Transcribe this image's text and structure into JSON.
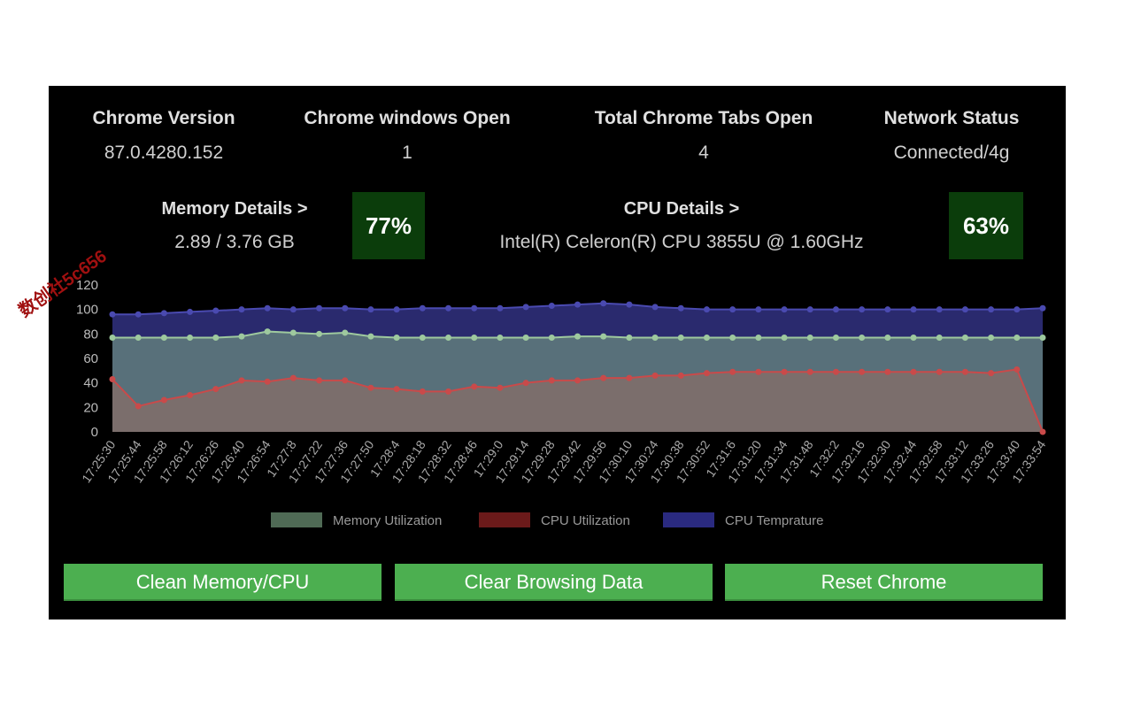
{
  "stats": {
    "chrome_version": {
      "label": "Chrome Version",
      "value": "87.0.4280.152"
    },
    "windows_open": {
      "label": "Chrome windows Open",
      "value": "1"
    },
    "tabs_open": {
      "label": "Total Chrome Tabs Open",
      "value": "4"
    },
    "network": {
      "label": "Network Status",
      "value": "Connected/4g"
    }
  },
  "memory": {
    "label": "Memory Details >",
    "value": "2.89 / 3.76 GB",
    "percent": "77%"
  },
  "cpu": {
    "label": "CPU Details >",
    "value": "Intel(R) Celeron(R) CPU 3855U @ 1.60GHz",
    "percent": "63%"
  },
  "watermark": "数创社5c656",
  "buttons": {
    "clean": "Clean Memory/CPU",
    "clear": "Clear Browsing Data",
    "reset": "Reset Chrome"
  },
  "colors": {
    "memory_fill": "#58707a",
    "memory_line": "#9ec99e",
    "cpu_fill": "#7b6e6c",
    "cpu_line": "#c94a4a",
    "temp_fill": "#2a2a6e",
    "temp_line": "#4a4ab0",
    "button": "#4caf50",
    "percent_box": "#0b3d0b"
  },
  "chart_data": {
    "type": "area",
    "ylim": [
      0,
      120
    ],
    "yticks": [
      "0",
      "20",
      "40",
      "60",
      "80",
      "100",
      "120"
    ],
    "x": [
      "17:25:30",
      "17:25:44",
      "17:25:58",
      "17:26:12",
      "17:26:26",
      "17:26:40",
      "17:26:54",
      "17:27:8",
      "17:27:22",
      "17:27:36",
      "17:27:50",
      "17:28:4",
      "17:28:18",
      "17:28:32",
      "17:28:46",
      "17:29:0",
      "17:29:14",
      "17:29:28",
      "17:29:42",
      "17:29:56",
      "17:30:10",
      "17:30:24",
      "17:30:38",
      "17:30:52",
      "17:31:6",
      "17:31:20",
      "17:31:34",
      "17:31:48",
      "17:32:2",
      "17:32:16",
      "17:32:30",
      "17:32:44",
      "17:32:58",
      "17:33:12",
      "17:33:26",
      "17:33:40",
      "17:33:54"
    ],
    "legend": [
      "Memory Utilization",
      "CPU Utilization",
      "CPU Temprature"
    ],
    "series": [
      {
        "name": "CPU Temprature",
        "values": [
          96,
          96,
          97,
          98,
          99,
          100,
          101,
          100,
          101,
          101,
          100,
          100,
          101,
          101,
          101,
          101,
          102,
          103,
          104,
          105,
          104,
          102,
          101,
          100,
          100,
          100,
          100,
          100,
          100,
          100,
          100,
          100,
          100,
          100,
          100,
          100,
          101
        ]
      },
      {
        "name": "Memory Utilization",
        "values": [
          77,
          77,
          77,
          77,
          77,
          78,
          82,
          81,
          80,
          81,
          78,
          77,
          77,
          77,
          77,
          77,
          77,
          77,
          78,
          78,
          77,
          77,
          77,
          77,
          77,
          77,
          77,
          77,
          77,
          77,
          77,
          77,
          77,
          77,
          77,
          77,
          77
        ]
      },
      {
        "name": "CPU Utilization",
        "values": [
          43,
          21,
          26,
          30,
          35,
          42,
          41,
          44,
          42,
          42,
          36,
          35,
          33,
          33,
          37,
          36,
          40,
          42,
          42,
          44,
          44,
          46,
          46,
          48,
          49,
          49,
          49,
          49,
          49,
          49,
          49,
          49,
          49,
          49,
          48,
          51,
          0
        ]
      }
    ]
  }
}
